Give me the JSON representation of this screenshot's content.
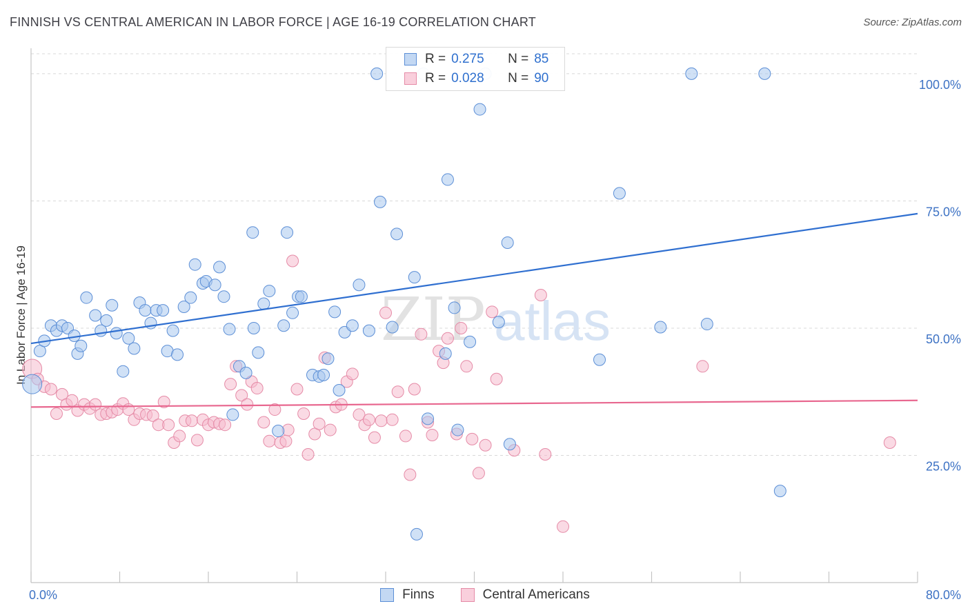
{
  "title": "FINNISH VS CENTRAL AMERICAN IN LABOR FORCE | AGE 16-19 CORRELATION CHART",
  "source": "Source: ZipAtlas.com",
  "watermark": {
    "zip": "ZIP",
    "atlas": "atlas"
  },
  "colors": {
    "finns_fill": "#aac8ee",
    "finns_stroke": "#5b8ed6",
    "finns_line": "#2f6fd0",
    "ca_fill": "#f6bccd",
    "ca_stroke": "#e58aa6",
    "ca_line": "#e8678f",
    "axis_text": "#3d72c4",
    "grid": "#d8d8d8"
  },
  "legend": {
    "rows": [
      {
        "r_label": "R =",
        "r_value": "0.275",
        "n_label": "N =",
        "n_value": "85"
      },
      {
        "r_label": "R =",
        "r_value": "0.028",
        "n_label": "N =",
        "n_value": "90"
      }
    ]
  },
  "bottom_legend": [
    "Finns",
    "Central Americans"
  ],
  "chart_data": {
    "type": "scatter",
    "ylabel": "In Labor Force | Age 16-19",
    "xlim": [
      0,
      80
    ],
    "ylim": [
      0,
      105
    ],
    "x_tick_labels": {
      "min": "0.0%",
      "max": "80.0%"
    },
    "y_ticks": [
      {
        "value": 25,
        "label": "25.0%"
      },
      {
        "value": 50,
        "label": "50.0%"
      },
      {
        "value": 75,
        "label": "75.0%"
      },
      {
        "value": 100,
        "label": "100.0%"
      }
    ],
    "series": [
      {
        "name": "Finns",
        "r": 0.275,
        "n": 85,
        "trend": {
          "x0": 0,
          "y0": 47.0,
          "x1": 80,
          "y1": 72.5
        },
        "points": [
          [
            0.1,
            39.0
          ],
          [
            0.8,
            45.5
          ],
          [
            1.2,
            47.5
          ],
          [
            1.8,
            50.5
          ],
          [
            2.3,
            49.5
          ],
          [
            2.8,
            50.5
          ],
          [
            3.3,
            50.0
          ],
          [
            3.9,
            48.5
          ],
          [
            4.2,
            45.0
          ],
          [
            4.5,
            46.5
          ],
          [
            5.0,
            56.0
          ],
          [
            5.8,
            52.5
          ],
          [
            6.3,
            49.5
          ],
          [
            6.8,
            51.5
          ],
          [
            7.3,
            54.5
          ],
          [
            7.7,
            49.0
          ],
          [
            8.3,
            41.5
          ],
          [
            8.8,
            48.0
          ],
          [
            9.3,
            46.0
          ],
          [
            9.8,
            55.0
          ],
          [
            10.3,
            53.5
          ],
          [
            10.8,
            51.0
          ],
          [
            11.3,
            53.5
          ],
          [
            11.9,
            53.5
          ],
          [
            12.3,
            45.5
          ],
          [
            12.8,
            49.5
          ],
          [
            13.2,
            44.8
          ],
          [
            13.8,
            54.2
          ],
          [
            14.4,
            56.0
          ],
          [
            14.8,
            62.5
          ],
          [
            15.5,
            58.8
          ],
          [
            15.8,
            59.2
          ],
          [
            16.6,
            58.5
          ],
          [
            17.0,
            62.0
          ],
          [
            17.4,
            56.2
          ],
          [
            17.9,
            49.8
          ],
          [
            18.2,
            33.0
          ],
          [
            18.8,
            42.5
          ],
          [
            19.4,
            41.2
          ],
          [
            20.0,
            68.8
          ],
          [
            20.5,
            45.2
          ],
          [
            21.0,
            54.8
          ],
          [
            21.5,
            57.3
          ],
          [
            22.3,
            29.8
          ],
          [
            22.8,
            50.5
          ],
          [
            23.1,
            68.8
          ],
          [
            23.6,
            53.0
          ],
          [
            24.1,
            56.2
          ],
          [
            24.4,
            56.2
          ],
          [
            25.4,
            40.8
          ],
          [
            26.0,
            40.5
          ],
          [
            26.4,
            40.8
          ],
          [
            26.8,
            44.0
          ],
          [
            27.4,
            53.2
          ],
          [
            27.8,
            37.8
          ],
          [
            28.3,
            49.2
          ],
          [
            29.0,
            50.5
          ],
          [
            29.6,
            58.5
          ],
          [
            30.5,
            49.5
          ],
          [
            31.2,
            100.0
          ],
          [
            31.5,
            74.8
          ],
          [
            32.6,
            50.2
          ],
          [
            33.0,
            68.5
          ],
          [
            34.6,
            60.0
          ],
          [
            34.8,
            9.5
          ],
          [
            35.4,
            100.0
          ],
          [
            35.8,
            32.2
          ],
          [
            37.4,
            45.0
          ],
          [
            37.6,
            79.2
          ],
          [
            38.2,
            54.0
          ],
          [
            38.5,
            30.0
          ],
          [
            39.6,
            47.3
          ],
          [
            40.5,
            93.0
          ],
          [
            41.0,
            100.0
          ],
          [
            42.2,
            51.2
          ],
          [
            43.0,
            66.8
          ],
          [
            43.2,
            27.2
          ],
          [
            51.3,
            43.8
          ],
          [
            53.1,
            76.5
          ],
          [
            56.8,
            50.2
          ],
          [
            59.6,
            100.0
          ],
          [
            61.0,
            50.8
          ],
          [
            66.2,
            100.0
          ],
          [
            67.6,
            18.0
          ],
          [
            20.1,
            50.0
          ]
        ]
      },
      {
        "name": "Central Americans",
        "r": 0.028,
        "n": 90,
        "trend": {
          "x0": 0,
          "y0": 34.5,
          "x1": 80,
          "y1": 35.8
        },
        "points": [
          [
            0.1,
            42.0
          ],
          [
            0.6,
            40.0
          ],
          [
            1.2,
            38.5
          ],
          [
            1.8,
            38.0
          ],
          [
            2.3,
            33.2
          ],
          [
            2.8,
            37.0
          ],
          [
            3.2,
            35.0
          ],
          [
            3.7,
            35.8
          ],
          [
            4.2,
            33.8
          ],
          [
            4.8,
            35.0
          ],
          [
            5.3,
            34.2
          ],
          [
            5.8,
            35.0
          ],
          [
            6.3,
            33.0
          ],
          [
            6.8,
            33.2
          ],
          [
            7.3,
            33.5
          ],
          [
            7.8,
            34.0
          ],
          [
            8.3,
            35.2
          ],
          [
            8.8,
            34.0
          ],
          [
            9.3,
            32.0
          ],
          [
            9.8,
            33.2
          ],
          [
            10.4,
            33.0
          ],
          [
            11.0,
            32.8
          ],
          [
            11.5,
            31.0
          ],
          [
            12.0,
            35.5
          ],
          [
            12.4,
            31.0
          ],
          [
            12.9,
            27.5
          ],
          [
            13.4,
            28.8
          ],
          [
            13.9,
            31.8
          ],
          [
            14.5,
            31.8
          ],
          [
            15.0,
            28.0
          ],
          [
            15.5,
            32.0
          ],
          [
            16.0,
            31.0
          ],
          [
            16.5,
            31.5
          ],
          [
            17.0,
            31.2
          ],
          [
            17.5,
            31.0
          ],
          [
            18.0,
            39.0
          ],
          [
            18.5,
            42.5
          ],
          [
            19.0,
            36.8
          ],
          [
            19.5,
            35.0
          ],
          [
            19.9,
            39.5
          ],
          [
            20.4,
            38.2
          ],
          [
            21.0,
            31.5
          ],
          [
            21.5,
            27.8
          ],
          [
            22.0,
            34.0
          ],
          [
            22.5,
            27.5
          ],
          [
            23.0,
            27.8
          ],
          [
            23.2,
            30.0
          ],
          [
            23.6,
            63.2
          ],
          [
            24.0,
            38.0
          ],
          [
            24.6,
            33.2
          ],
          [
            25.0,
            25.2
          ],
          [
            25.6,
            29.2
          ],
          [
            26.0,
            31.2
          ],
          [
            26.5,
            44.2
          ],
          [
            27.0,
            30.0
          ],
          [
            27.5,
            34.5
          ],
          [
            28.0,
            35.0
          ],
          [
            28.5,
            39.5
          ],
          [
            29.0,
            41.0
          ],
          [
            29.6,
            33.0
          ],
          [
            30.1,
            31.0
          ],
          [
            30.5,
            32.0
          ],
          [
            31.0,
            28.5
          ],
          [
            31.6,
            31.8
          ],
          [
            32.0,
            53.0
          ],
          [
            32.6,
            32.0
          ],
          [
            33.1,
            37.5
          ],
          [
            33.8,
            28.8
          ],
          [
            34.2,
            21.2
          ],
          [
            34.6,
            38.0
          ],
          [
            35.2,
            48.8
          ],
          [
            35.8,
            31.5
          ],
          [
            36.2,
            29.0
          ],
          [
            36.8,
            45.5
          ],
          [
            37.2,
            43.2
          ],
          [
            37.6,
            48.0
          ],
          [
            38.4,
            29.2
          ],
          [
            38.8,
            50.0
          ],
          [
            39.3,
            42.5
          ],
          [
            39.8,
            28.2
          ],
          [
            40.4,
            21.5
          ],
          [
            41.0,
            27.0
          ],
          [
            41.6,
            53.2
          ],
          [
            42.0,
            40.0
          ],
          [
            43.6,
            26.0
          ],
          [
            46.0,
            56.5
          ],
          [
            46.4,
            25.2
          ],
          [
            48.0,
            11.0
          ],
          [
            60.6,
            42.5
          ],
          [
            77.5,
            27.5
          ]
        ]
      }
    ]
  }
}
